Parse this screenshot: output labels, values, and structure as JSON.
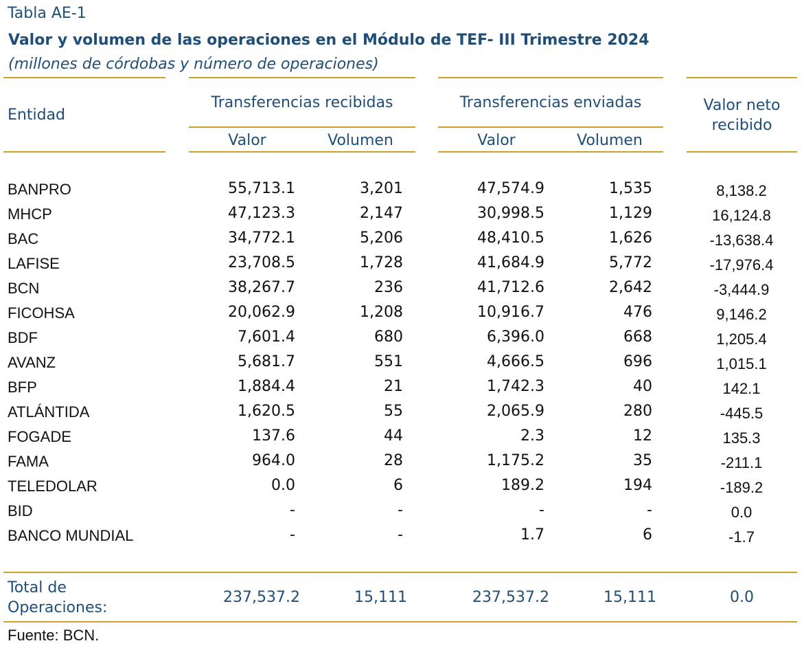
{
  "table_label": "Tabla AE-1",
  "title": "Valor y volumen de las operaciones en el Módulo de TEF- III Trimestre 2024",
  "subtitle": "(millones de córdobas y número de operaciones)",
  "headers": {
    "entity": "Entidad",
    "received_group": "Transferencias recibidas",
    "sent_group": "Transferencias enviadas",
    "net_line1": "Valor neto",
    "net_line2": "recibido",
    "value": "Valor",
    "volume": "Volumen"
  },
  "rows": [
    {
      "entity": "BANPRO",
      "rec_value": "55,713.1",
      "rec_volume": "3,201",
      "sent_value": "47,574.9",
      "sent_volume": "1,535",
      "net": "8,138.2"
    },
    {
      "entity": "MHCP",
      "rec_value": "47,123.3",
      "rec_volume": "2,147",
      "sent_value": "30,998.5",
      "sent_volume": "1,129",
      "net": "16,124.8"
    },
    {
      "entity": "BAC",
      "rec_value": "34,772.1",
      "rec_volume": "5,206",
      "sent_value": "48,410.5",
      "sent_volume": "1,626",
      "net": "-13,638.4"
    },
    {
      "entity": "LAFISE",
      "rec_value": "23,708.5",
      "rec_volume": "1,728",
      "sent_value": "41,684.9",
      "sent_volume": "5,772",
      "net": "-17,976.4"
    },
    {
      "entity": "BCN",
      "rec_value": "38,267.7",
      "rec_volume": "236",
      "sent_value": "41,712.6",
      "sent_volume": "2,642",
      "net": "-3,444.9"
    },
    {
      "entity": "FICOHSA",
      "rec_value": "20,062.9",
      "rec_volume": "1,208",
      "sent_value": "10,916.7",
      "sent_volume": "476",
      "net": "9,146.2"
    },
    {
      "entity": "BDF",
      "rec_value": "7,601.4",
      "rec_volume": "680",
      "sent_value": "6,396.0",
      "sent_volume": "668",
      "net": "1,205.4"
    },
    {
      "entity": "AVANZ",
      "rec_value": "5,681.7",
      "rec_volume": "551",
      "sent_value": "4,666.5",
      "sent_volume": "696",
      "net": "1,015.1"
    },
    {
      "entity": "BFP",
      "rec_value": "1,884.4",
      "rec_volume": "21",
      "sent_value": "1,742.3",
      "sent_volume": "40",
      "net": "142.1"
    },
    {
      "entity": "ATLÁNTIDA",
      "rec_value": "1,620.5",
      "rec_volume": "55",
      "sent_value": "2,065.9",
      "sent_volume": "280",
      "net": "-445.5"
    },
    {
      "entity": "FOGADE",
      "rec_value": "137.6",
      "rec_volume": "44",
      "sent_value": "2.3",
      "sent_volume": "12",
      "net": "135.3"
    },
    {
      "entity": "FAMA",
      "rec_value": "964.0",
      "rec_volume": "28",
      "sent_value": "1,175.2",
      "sent_volume": "35",
      "net": "-211.1"
    },
    {
      "entity": "TELEDOLAR",
      "rec_value": "0.0",
      "rec_volume": "6",
      "sent_value": "189.2",
      "sent_volume": "194",
      "net": "-189.2"
    },
    {
      "entity": "BID",
      "rec_value": "-",
      "rec_volume": "-",
      "sent_value": "-",
      "sent_volume": "-",
      "net": "0.0"
    },
    {
      "entity": "BANCO MUNDIAL",
      "rec_value": "-",
      "rec_volume": "-",
      "sent_value": "1.7",
      "sent_volume": "6",
      "net": "-1.7"
    }
  ],
  "total": {
    "label_line1": "Total de",
    "label_line2": "Operaciones:",
    "rec_value": "237,537.2",
    "rec_volume": "15,111",
    "sent_value": "237,537.2",
    "sent_volume": "15,111",
    "net": "0.0"
  },
  "source": "Fuente: BCN.",
  "colors": {
    "accent_text": "#1f4e79",
    "rule": "#c9a227"
  }
}
